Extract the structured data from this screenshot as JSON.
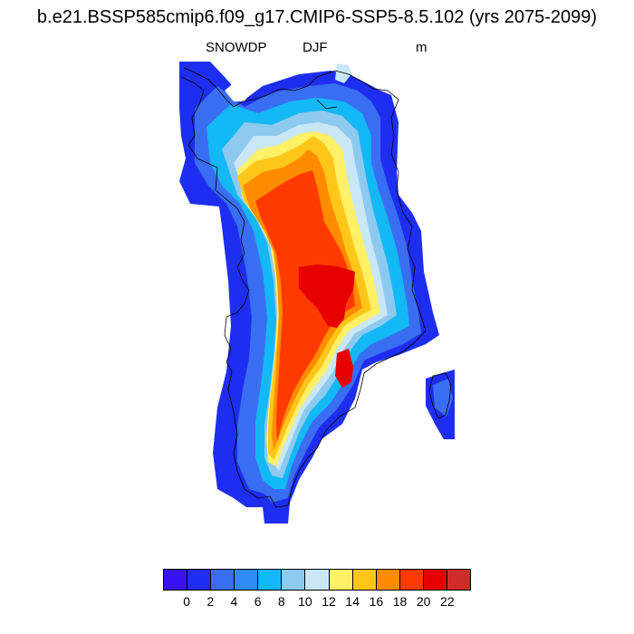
{
  "title": "b.e21.BSSP585cmip6.f09_g17.CMIP6-SSP5-8.5.102 (yrs 2075-2099)",
  "variable": "SNOWDP",
  "season": "DJF",
  "units": "m",
  "colorbar": {
    "colors": [
      "#3a11f0",
      "#1e2ef0",
      "#3a6ef2",
      "#2f8cf5",
      "#14b8f5",
      "#8ecaf0",
      "#c9e7f7",
      "#fff066",
      "#ffc61a",
      "#ff8c00",
      "#ff3a00",
      "#e60000",
      "#d12a2a"
    ],
    "tick_labels": [
      "0",
      "2",
      "4",
      "6",
      "8",
      "10",
      "12",
      "14",
      "16",
      "18",
      "20",
      "22"
    ]
  },
  "map_legend": {
    "field": "snow depth",
    "color_scale_bins_m": [
      0,
      2,
      4,
      6,
      8,
      10,
      12,
      14,
      16,
      18,
      20,
      22
    ]
  }
}
